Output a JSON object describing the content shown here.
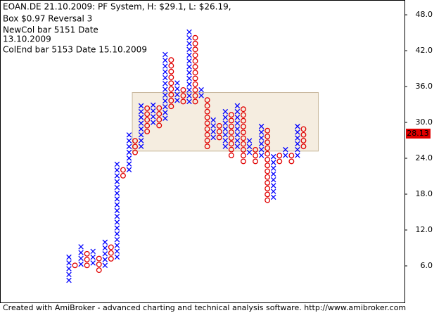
{
  "chart_data": {
    "type": "point-and-figure",
    "title_lines": [
      "EOAN.DE 21.10.2009: PF System, H: $29.1, L: $26.19,",
      "Box $0.97 Reversal 3",
      "NewCol bar 5151 Date",
      "13.10.2009",
      "ColEnd bar 5153 Date 15.10.2009"
    ],
    "footer": "Created with AmiBroker - advanced charting and technical analysis software. http://www.amibroker.com",
    "box_size": 0.97,
    "colors": {
      "X": "#0000ff",
      "O": "#e00000"
    },
    "columns": [
      {
        "type": "X",
        "low": 3.1,
        "high": 7.8
      },
      {
        "type": "O",
        "low": 5.6,
        "high": 6.8
      },
      {
        "type": "X",
        "low": 5.8,
        "high": 9.7
      },
      {
        "type": "O",
        "low": 5.6,
        "high": 8.6
      },
      {
        "type": "X",
        "low": 6.0,
        "high": 8.9
      },
      {
        "type": "O",
        "low": 4.8,
        "high": 7.7
      },
      {
        "type": "X",
        "low": 5.6,
        "high": 10.5
      },
      {
        "type": "O",
        "low": 6.7,
        "high": 9.6
      },
      {
        "type": "X",
        "low": 7.0,
        "high": 23.3
      },
      {
        "type": "O",
        "low": 20.6,
        "high": 22.5
      },
      {
        "type": "X",
        "low": 21.6,
        "high": 28.4
      },
      {
        "type": "O",
        "low": 24.5,
        "high": 27.4
      },
      {
        "type": "X",
        "low": 25.5,
        "high": 33.3
      },
      {
        "type": "O",
        "low": 28.0,
        "high": 32.8
      },
      {
        "type": "X",
        "low": 29.5,
        "high": 33.4
      },
      {
        "type": "O",
        "low": 29.0,
        "high": 32.9
      },
      {
        "type": "X",
        "low": 30.2,
        "high": 41.8
      },
      {
        "type": "O",
        "low": 32.2,
        "high": 40.9
      },
      {
        "type": "X",
        "low": 33.2,
        "high": 37.1
      },
      {
        "type": "O",
        "low": 33.0,
        "high": 35.9
      },
      {
        "type": "X",
        "low": 33.0,
        "high": 45.6
      },
      {
        "type": "O",
        "low": 33.0,
        "high": 44.6
      },
      {
        "type": "X",
        "low": 34.0,
        "high": 35.9
      },
      {
        "type": "O",
        "low": 25.5,
        "high": 34.2
      },
      {
        "type": "X",
        "low": 27.0,
        "high": 30.9
      },
      {
        "type": "O",
        "low": 27.0,
        "high": 29.9
      },
      {
        "type": "X",
        "low": 25.5,
        "high": 32.3
      },
      {
        "type": "O",
        "low": 24.0,
        "high": 31.6
      },
      {
        "type": "X",
        "low": 25.5,
        "high": 33.3
      },
      {
        "type": "O",
        "low": 23.0,
        "high": 32.2
      },
      {
        "type": "X",
        "low": 24.5,
        "high": 27.4
      },
      {
        "type": "O",
        "low": 23.0,
        "high": 25.9
      },
      {
        "type": "X",
        "low": 24.0,
        "high": 30.2
      },
      {
        "type": "O",
        "low": 16.5,
        "high": 29.2
      },
      {
        "type": "X",
        "low": 17.0,
        "high": 24.8
      },
      {
        "type": "O",
        "low": 23.0,
        "high": 24.9
      },
      {
        "type": "X",
        "low": 24.0,
        "high": 25.9
      },
      {
        "type": "O",
        "low": 23.0,
        "high": 24.9
      },
      {
        "type": "X",
        "low": 24.0,
        "high": 30.2
      },
      {
        "type": "O",
        "low": 25.5,
        "high": 29.4
      }
    ],
    "zone": {
      "low": 25.2,
      "high": 35.0,
      "start": 11,
      "end": 41
    },
    "last_price": {
      "value": 28.13,
      "label": "28.13"
    },
    "ylim": [
      0,
      50.3
    ],
    "yticks": [
      {
        "value": 6,
        "label": "6.0"
      },
      {
        "value": 12,
        "label": "12.0"
      },
      {
        "value": 18,
        "label": "18.0"
      },
      {
        "value": 24,
        "label": "24.0"
      },
      {
        "value": 30,
        "label": "30.0"
      },
      {
        "value": 36,
        "label": "36.0"
      },
      {
        "value": 42,
        "label": "42.0"
      },
      {
        "value": 48,
        "label": "48.0"
      }
    ]
  }
}
